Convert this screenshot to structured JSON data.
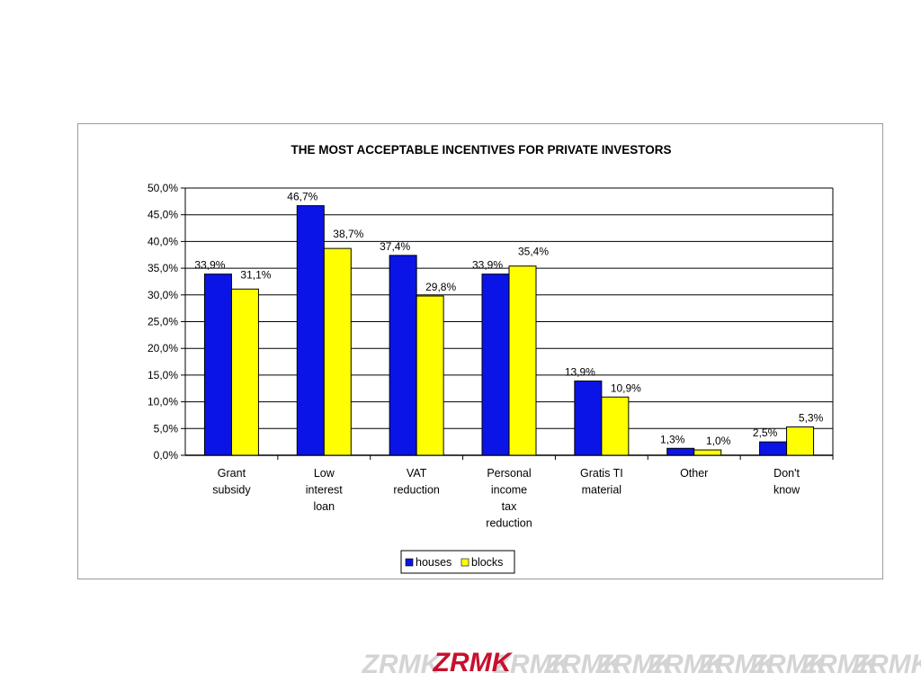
{
  "chart_data": {
    "type": "bar",
    "title": "THE MOST ACCEPTABLE INCENTIVES FOR PRIVATE INVESTORS",
    "categories": [
      [
        "Grant",
        "subsidy"
      ],
      [
        "Low",
        "interest",
        "loan"
      ],
      [
        "VAT",
        "reduction"
      ],
      [
        "Personal",
        "income",
        "tax",
        "reduction"
      ],
      [
        "Gratis TI",
        "material"
      ],
      [
        "Other"
      ],
      [
        "Don't",
        "know"
      ]
    ],
    "series": [
      {
        "name": "houses",
        "color": "#0a14e6",
        "values": [
          33.9,
          46.7,
          37.4,
          33.9,
          13.9,
          1.3,
          2.5
        ],
        "labels": [
          "33,9%",
          "46,7%",
          "37,4%",
          "33,9%",
          "13,9%",
          "1,3%",
          "2,5%"
        ]
      },
      {
        "name": "blocks",
        "color": "#ffff00",
        "values": [
          31.1,
          38.7,
          29.8,
          35.4,
          10.9,
          1.0,
          5.3
        ],
        "labels": [
          "31,1%",
          "38,7%",
          "29,8%",
          "35,4%",
          "10,9%",
          "1,0%",
          "5,3%"
        ]
      }
    ],
    "ylim": [
      0,
      50
    ],
    "yticks": [
      "0,0%",
      "5,0%",
      "10,0%",
      "15,0%",
      "20,0%",
      "25,0%",
      "30,0%",
      "35,0%",
      "40,0%",
      "45,0%",
      "50,0%"
    ],
    "grid": true,
    "legend_position": "bottom"
  },
  "footer": {
    "logo_text": "ZRMK",
    "logo_color": "#c8102e",
    "watermark_color": "#d4d4d4"
  }
}
